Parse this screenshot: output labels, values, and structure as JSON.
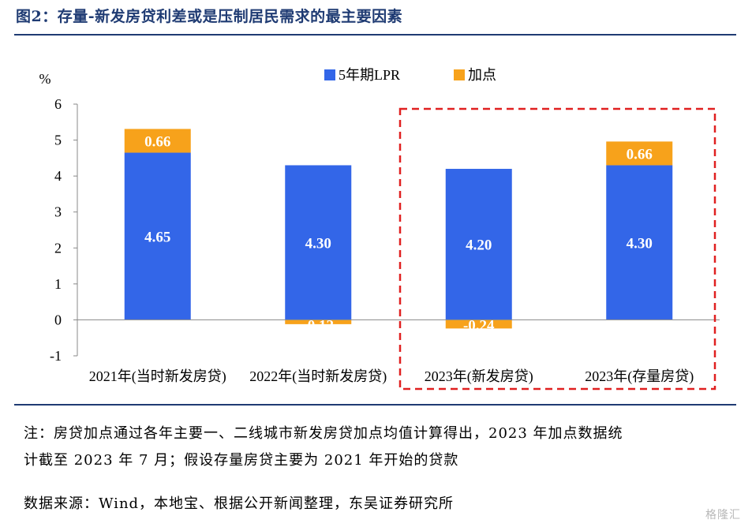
{
  "title": "图2：存量-新发房贷利差或是压制居民需求的最主要因素",
  "notes": {
    "line1": "注：房贷加点通过各年主要一、二线城市新发房贷加点均值计算得出，2023 年加点数据统",
    "line2": "计截至 2023 年 7 月；假设存量房贷主要为 2021 年开始的贷款",
    "source": "数据来源：Wind，本地宝、根据公开新闻整理，东吴证券研究所"
  },
  "watermark": "格隆汇",
  "chart_data": {
    "type": "bar",
    "stacked": true,
    "ylabel": "%",
    "ylim": [
      -1,
      6
    ],
    "yticks": [
      "-1",
      "0",
      "1",
      "2",
      "3",
      "4",
      "5",
      "6"
    ],
    "categories": [
      "2021年(当时新发房贷)",
      "2022年(当时新发房贷)",
      "2023年(新发房贷)",
      "2023年(存量房贷)"
    ],
    "series": [
      {
        "name": "5年期LPR",
        "color": "#3366e8",
        "values": [
          4.65,
          4.3,
          4.2,
          4.3
        ],
        "labels": [
          "4.65",
          "4.30",
          "4.20",
          "4.30"
        ]
      },
      {
        "name": "加点",
        "color": "#f7a21b",
        "values": [
          0.66,
          -0.12,
          -0.24,
          0.66
        ],
        "labels": [
          "0.66",
          "-0.12",
          "-0.24",
          "0.66"
        ]
      }
    ],
    "legend": "top-center",
    "highlight": {
      "from_category": 2,
      "to_category": 3,
      "color": "#e02020",
      "style": "dashed"
    },
    "grid": false
  }
}
